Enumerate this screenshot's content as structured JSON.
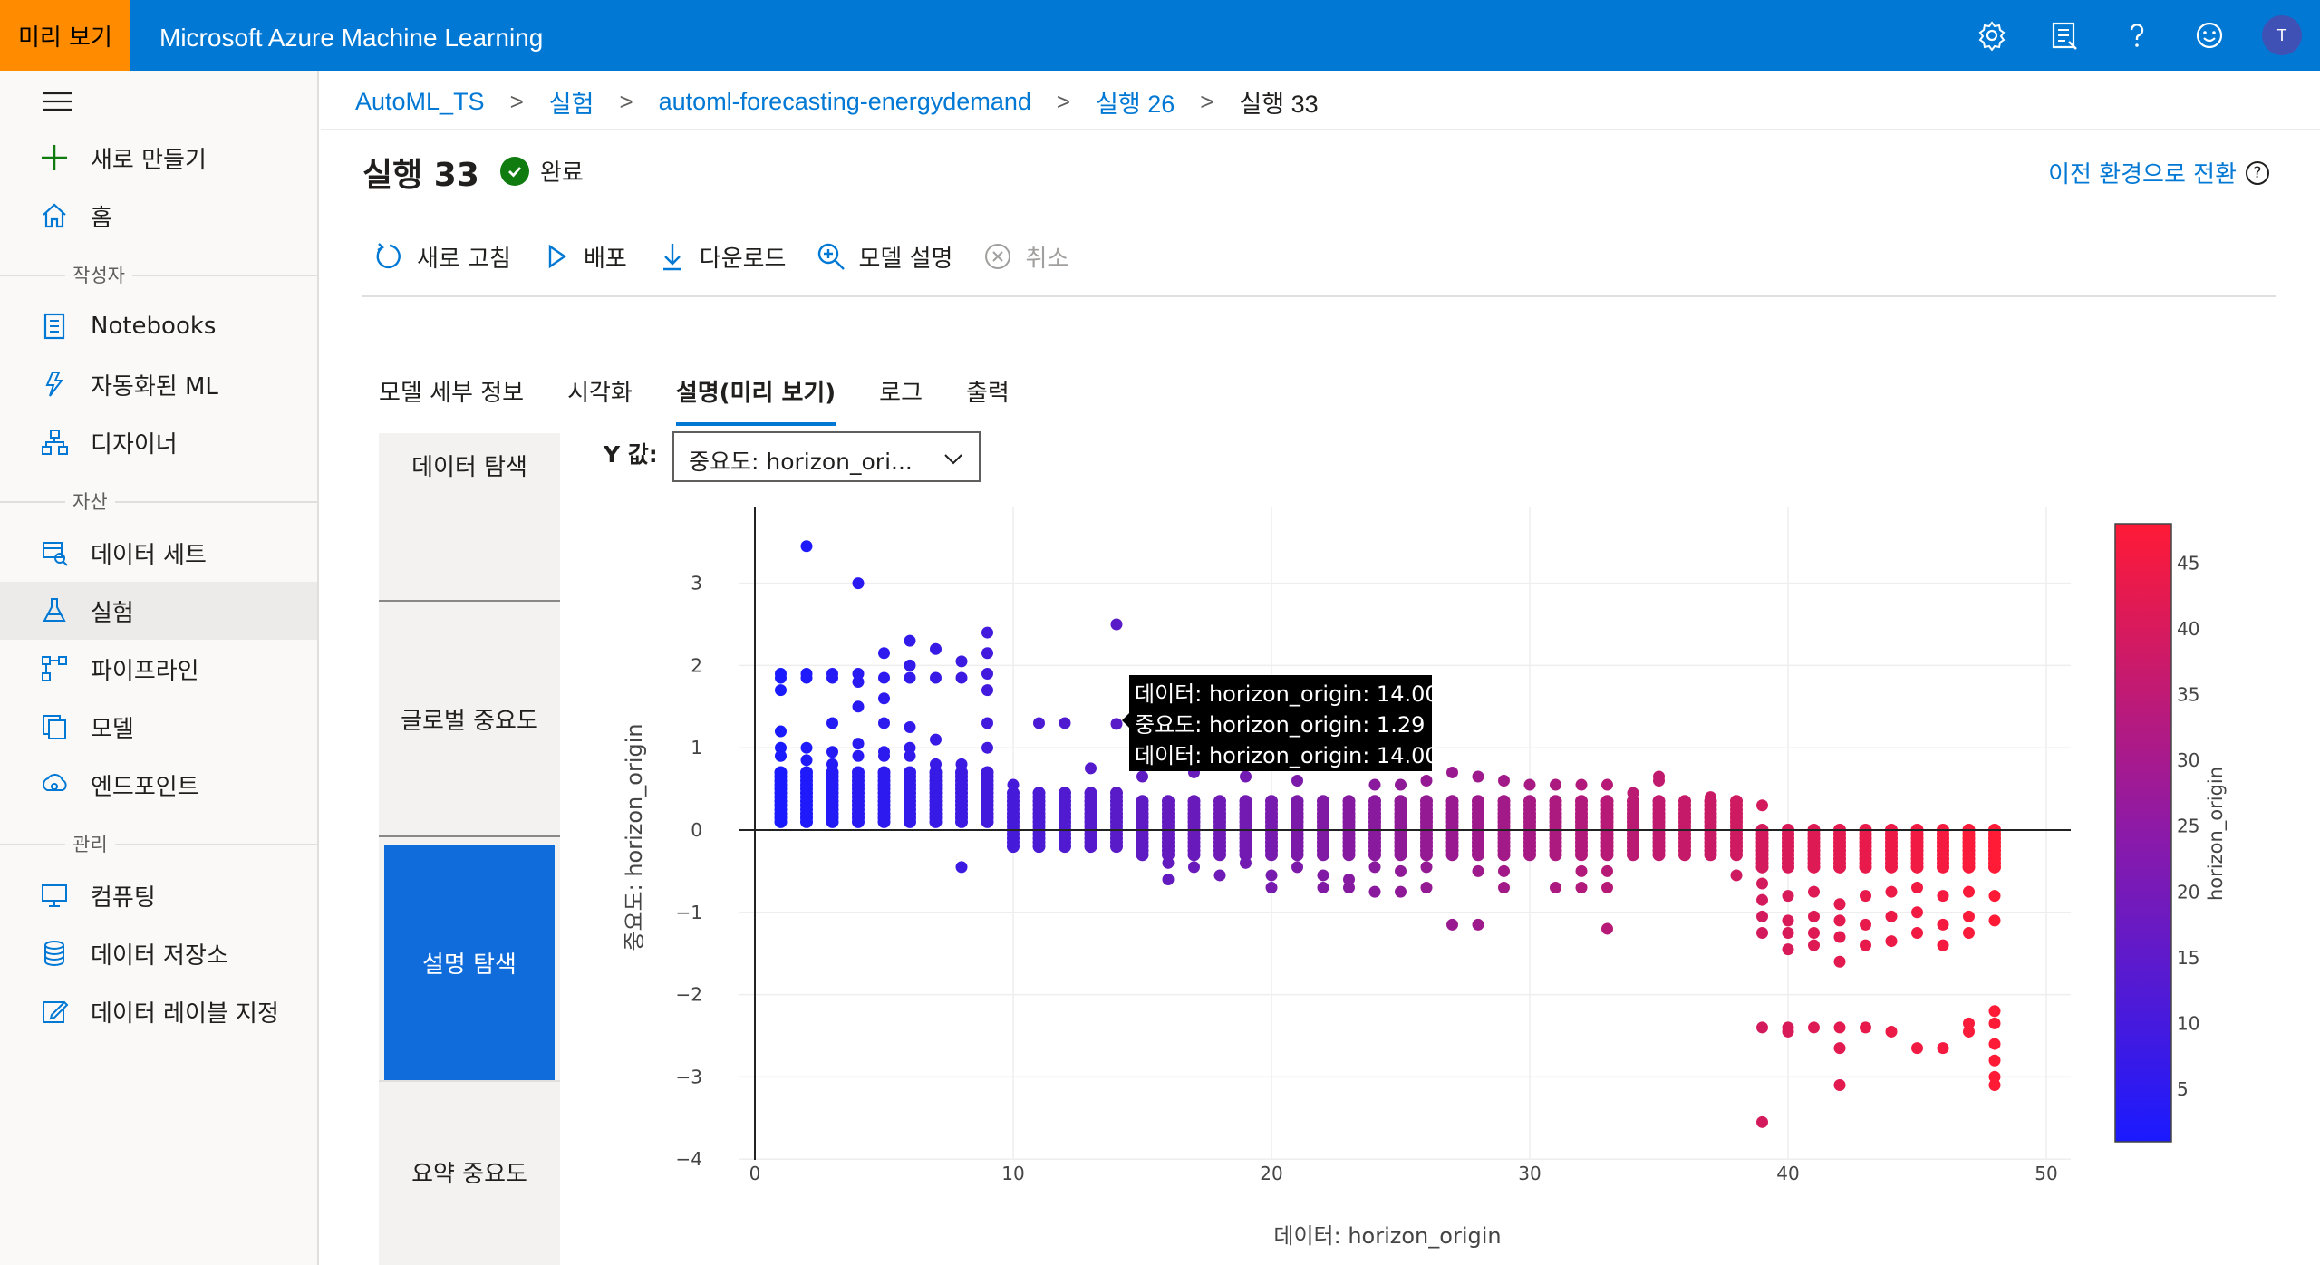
{
  "header": {
    "preview_badge": "미리 보기",
    "app_title": "Microsoft Azure Machine Learning",
    "avatar_initial": "T",
    "brand_color": "#0078d4",
    "badge_color": "#ff8c00"
  },
  "sidebar": {
    "items": [
      {
        "label": "새로 만들기",
        "icon": "plus-icon"
      },
      {
        "label": "홈",
        "icon": "home-icon"
      },
      {
        "label": "Notebooks",
        "icon": "notebook-icon"
      },
      {
        "label": "자동화된 ML",
        "icon": "automl-icon"
      },
      {
        "label": "디자이너",
        "icon": "designer-icon"
      },
      {
        "label": "데이터 세트",
        "icon": "dataset-icon"
      },
      {
        "label": "실험",
        "icon": "flask-icon",
        "active": true
      },
      {
        "label": "파이프라인",
        "icon": "pipeline-icon"
      },
      {
        "label": "모델",
        "icon": "model-icon"
      },
      {
        "label": "엔드포인트",
        "icon": "endpoint-icon"
      },
      {
        "label": "컴퓨팅",
        "icon": "compute-icon"
      },
      {
        "label": "데이터 저장소",
        "icon": "datastore-icon"
      },
      {
        "label": "데이터 레이블 지정",
        "icon": "labeling-icon"
      }
    ],
    "sections": [
      "작성자",
      "자산",
      "관리"
    ]
  },
  "breadcrumb": [
    "AutoML_TS",
    "실험",
    "automl-forecasting-energydemand",
    "실행 26",
    "실행 33"
  ],
  "run": {
    "title": "실행 33",
    "status": "완료",
    "switch_link": "이전 환경으로 전환"
  },
  "toolbar": {
    "refresh": "새로 고침",
    "deploy": "배포",
    "download": "다운로드",
    "explain": "모델 설명",
    "cancel": "취소"
  },
  "tabs": [
    "모델 세부 정보",
    "시각화",
    "설명(미리 보기)",
    "로그",
    "출력"
  ],
  "explanation_nav": [
    "데이터 탐색",
    "글로벌 중요도",
    "설명 탐색",
    "요약 중요도"
  ],
  "y_selector": {
    "label": "Y 값:",
    "value": "중요도: horizon_ori..."
  },
  "tooltip": [
    "데이터: horizon_origin: 14.00",
    "중요도: horizon_origin: 1.29",
    "데이터: horizon_origin: 14.00"
  ],
  "chart_data": {
    "type": "scatter",
    "xlabel": "데이터: horizon_origin",
    "ylabel": "중요도: horizon_origin",
    "xlim": [
      -0.5,
      50.5
    ],
    "ylim": [
      -4,
      3.8
    ],
    "x_ticks": [
      0,
      10,
      20,
      30,
      40,
      50
    ],
    "y_ticks": [
      3,
      2,
      1,
      0,
      -1,
      -2,
      -3,
      -4
    ],
    "y_tick_labels": [
      "3",
      "2",
      "1",
      "0",
      "−1",
      "−2",
      "−3",
      "−4"
    ],
    "colorbar": {
      "title": "horizon_origin",
      "ticks": [
        5,
        10,
        15,
        20,
        25,
        30,
        35,
        40,
        45
      ],
      "min": 1,
      "max": 48,
      "colors": [
        "#1a1aff",
        "#ff1a36"
      ]
    },
    "grid": true,
    "columns": [
      {
        "x": 1,
        "vals": [
          1.9,
          1.85,
          1.7,
          1.2,
          1.0,
          0.9
        ]
      },
      {
        "x": 2,
        "vals": [
          3.45,
          1.9,
          1.85,
          1.0,
          0.85
        ]
      },
      {
        "x": 3,
        "vals": [
          1.9,
          1.85,
          1.3,
          0.95,
          0.8
        ]
      },
      {
        "x": 4,
        "vals": [
          3.0,
          1.9,
          1.8,
          1.5,
          1.05,
          0.9
        ]
      },
      {
        "x": 5,
        "vals": [
          2.15,
          1.85,
          1.6,
          1.3,
          0.95,
          0.9
        ]
      },
      {
        "x": 6,
        "vals": [
          2.3,
          2.0,
          1.85,
          1.25,
          1.0,
          0.9
        ]
      },
      {
        "x": 7,
        "vals": [
          2.2,
          1.85,
          1.1,
          0.8
        ]
      },
      {
        "x": 8,
        "vals": [
          2.05,
          1.85,
          0.8,
          -0.45
        ]
      },
      {
        "x": 9,
        "vals": [
          2.4,
          2.15,
          1.9,
          1.7,
          1.3,
          1.0
        ]
      },
      {
        "x": 10,
        "vals": [
          0.55
        ]
      },
      {
        "x": 11,
        "vals": [
          1.3
        ]
      },
      {
        "x": 12,
        "vals": [
          1.3
        ]
      },
      {
        "x": 13,
        "vals": [
          0.75
        ]
      },
      {
        "x": 14,
        "vals": [
          2.5,
          1.29
        ]
      },
      {
        "x": 15,
        "vals": [
          0.65
        ]
      },
      {
        "x": 16,
        "vals": [
          -0.4,
          -0.6
        ]
      },
      {
        "x": 17,
        "vals": [
          0.7,
          -0.45
        ]
      },
      {
        "x": 18,
        "vals": [
          -0.55
        ]
      },
      {
        "x": 19,
        "vals": [
          0.65,
          -0.4
        ]
      },
      {
        "x": 20,
        "vals": [
          -0.55,
          -0.7
        ]
      },
      {
        "x": 21,
        "vals": [
          0.6,
          -0.45
        ]
      },
      {
        "x": 22,
        "vals": [
          -0.55,
          -0.7
        ]
      },
      {
        "x": 23,
        "vals": [
          -0.6,
          -0.7
        ]
      },
      {
        "x": 24,
        "vals": [
          0.55,
          -0.45,
          -0.75
        ]
      },
      {
        "x": 25,
        "vals": [
          0.55,
          -0.5,
          -0.75
        ]
      },
      {
        "x": 26,
        "vals": [
          0.6,
          -0.45,
          -0.7
        ]
      },
      {
        "x": 27,
        "vals": [
          0.7,
          -1.15
        ]
      },
      {
        "x": 28,
        "vals": [
          0.65,
          -0.5,
          -1.15
        ]
      },
      {
        "x": 29,
        "vals": [
          0.6,
          -0.5,
          -0.7
        ]
      },
      {
        "x": 30,
        "vals": [
          0.55
        ]
      },
      {
        "x": 31,
        "vals": [
          0.55,
          -0.7
        ]
      },
      {
        "x": 32,
        "vals": [
          0.55,
          -0.5,
          -0.7
        ]
      },
      {
        "x": 33,
        "vals": [
          0.55,
          -0.5,
          -0.7,
          -1.2
        ]
      },
      {
        "x": 34,
        "vals": [
          0.45
        ]
      },
      {
        "x": 35,
        "vals": [
          0.65,
          0.6
        ]
      },
      {
        "x": 36,
        "vals": [
          0.35
        ]
      },
      {
        "x": 37,
        "vals": [
          0.4
        ]
      },
      {
        "x": 38,
        "vals": [
          0.35,
          -0.55
        ]
      },
      {
        "x": 39,
        "vals": [
          0.3,
          -0.65,
          -0.85,
          -1.05,
          -1.25,
          -2.4,
          -3.55
        ]
      },
      {
        "x": 40,
        "vals": [
          -0.8,
          -1.1,
          -1.25,
          -1.45,
          -2.4,
          -2.45
        ]
      },
      {
        "x": 41,
        "vals": [
          -0.75,
          -1.05,
          -1.25,
          -1.4,
          -2.4
        ]
      },
      {
        "x": 42,
        "vals": [
          -0.9,
          -1.1,
          -1.3,
          -1.6,
          -2.4,
          -2.65,
          -3.1
        ]
      },
      {
        "x": 43,
        "vals": [
          -0.8,
          -1.15,
          -1.4,
          -2.4
        ]
      },
      {
        "x": 44,
        "vals": [
          -0.75,
          -1.05,
          -1.35,
          -2.45
        ]
      },
      {
        "x": 45,
        "vals": [
          -0.7,
          -1.0,
          -1.25,
          -2.65
        ]
      },
      {
        "x": 46,
        "vals": [
          -0.8,
          -1.15,
          -1.4,
          -2.65
        ]
      },
      {
        "x": 47,
        "vals": [
          -0.75,
          -1.05,
          -1.25,
          -2.35,
          -2.45
        ]
      },
      {
        "x": 48,
        "vals": [
          -0.8,
          -1.1,
          -2.2,
          -2.35,
          -2.6,
          -2.8,
          -3.0,
          -3.1
        ]
      }
    ],
    "bands": [
      {
        "from": 1,
        "to": 9,
        "top": 0.7,
        "bottom": 0.1
      },
      {
        "from": 10,
        "to": 14,
        "top": 0.45,
        "bottom": -0.2
      },
      {
        "from": 15,
        "to": 38,
        "top": 0.35,
        "bottom": -0.3
      },
      {
        "from": 39,
        "to": 48,
        "top": 0.0,
        "bottom": -0.45
      }
    ]
  }
}
